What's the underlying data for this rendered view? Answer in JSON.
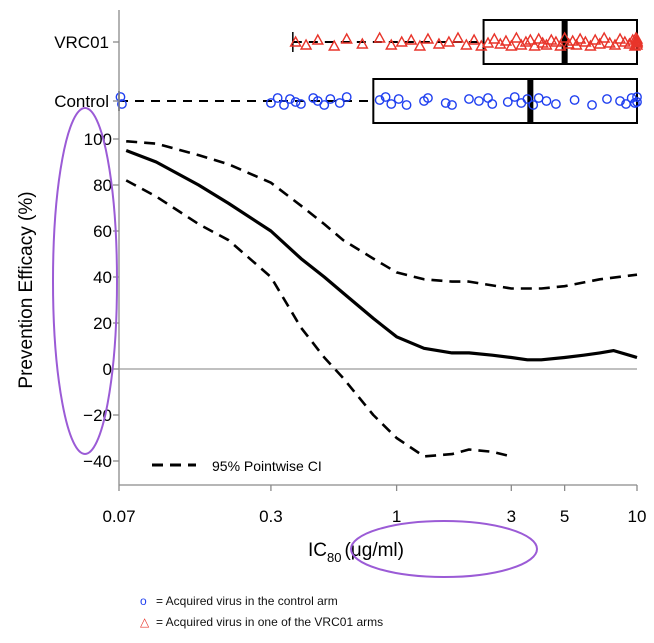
{
  "chart_data": {
    "type": "line",
    "ylabel": "Prevention Efficacy (%)",
    "xlabel_main": "IC",
    "xlabel_sub": "80",
    "xlabel_unit": "(μg/ml)",
    "x_scale": "log",
    "xlim": [
      0.07,
      10
    ],
    "ylim": [
      -40,
      100
    ],
    "x_ticks": [
      0.07,
      0.3,
      1,
      3,
      5,
      10
    ],
    "x_tick_labels": [
      "0.07",
      "0.3",
      "1",
      "3",
      "5",
      "10"
    ],
    "y_ticks": [
      -40,
      -20,
      0,
      20,
      40,
      60,
      80,
      100
    ],
    "y_tick_labels": [
      "−40",
      "−20",
      "0",
      "20",
      "40",
      "60",
      "80",
      "100"
    ],
    "reference_line_y": 0,
    "legend_entry": "95% Pointwise CI",
    "series": [
      {
        "style": "solid",
        "x": [
          0.075,
          0.1,
          0.15,
          0.2,
          0.3,
          0.4,
          0.5,
          0.6,
          0.8,
          1.0,
          1.3,
          1.7,
          2.0,
          2.5,
          3.0,
          3.5,
          4.0,
          5.0,
          6.0,
          7.0,
          8.0,
          10.0
        ],
        "y": [
          95,
          90,
          80,
          72,
          60,
          48,
          40,
          33,
          22,
          14,
          9,
          7,
          7,
          6,
          5,
          4,
          4,
          5,
          6,
          7,
          8,
          5
        ]
      },
      {
        "style": "dashed",
        "x": [
          0.075,
          0.1,
          0.15,
          0.2,
          0.3,
          0.4,
          0.5,
          0.6,
          0.8,
          1.0,
          1.3,
          1.7,
          2.0,
          3.0,
          4.0,
          5.0,
          7.0,
          10.0
        ],
        "y": [
          99,
          98,
          93,
          89,
          81,
          71,
          63,
          56,
          48,
          42,
          39,
          38,
          38,
          35,
          35,
          36,
          39,
          41
        ]
      },
      {
        "style": "dashed",
        "x": [
          0.075,
          0.1,
          0.15,
          0.2,
          0.3,
          0.4,
          0.5,
          0.6,
          0.8,
          1.0,
          1.3,
          1.7,
          2.0,
          2.5,
          3.0
        ],
        "y": [
          82,
          75,
          63,
          56,
          40,
          18,
          5,
          -4,
          -20,
          -30,
          -38,
          -37,
          -35,
          -36,
          -38
        ]
      }
    ],
    "strips": [
      {
        "label": "VRC01",
        "marker": "triangle",
        "color": "#e8342a",
        "whisker": [
          0.37,
          10
        ],
        "box": {
          "q1": 2.3,
          "median": 5.0,
          "q3": 10
        },
        "points": [
          0.38,
          0.42,
          0.47,
          0.55,
          0.62,
          0.72,
          0.85,
          0.95,
          1.05,
          1.15,
          1.25,
          1.35,
          1.5,
          1.65,
          1.8,
          1.95,
          2.1,
          2.25,
          2.4,
          2.55,
          2.7,
          2.85,
          3.0,
          3.15,
          3.3,
          3.45,
          3.6,
          3.75,
          3.9,
          4.05,
          4.2,
          4.4,
          4.6,
          4.8,
          5.0,
          5.2,
          5.4,
          5.6,
          5.8,
          6.1,
          6.4,
          6.7,
          7.0,
          7.3,
          7.7,
          8.1,
          8.5,
          8.9,
          9.3,
          9.6,
          9.8,
          9.9,
          10.0,
          10.0,
          10.0,
          10.0,
          10.0
        ],
        "jitter": [
          0,
          3,
          -2,
          4,
          -3,
          2,
          -4,
          3,
          0,
          -2,
          4,
          -3,
          2,
          0,
          -4,
          3,
          -2,
          4,
          1,
          -3,
          2,
          -1,
          4,
          -4,
          3,
          0,
          -2,
          4,
          -3,
          1,
          3,
          -2,
          0,
          4,
          -4,
          2,
          -1,
          3,
          -3,
          0,
          4,
          -2,
          2,
          -4,
          1,
          3,
          -3,
          0,
          2,
          -2,
          4,
          -4,
          0,
          3,
          -3,
          1,
          -1
        ]
      },
      {
        "label": "Control",
        "marker": "circle",
        "color": "#1f3ff0",
        "whisker": [
          0.07,
          10
        ],
        "box": {
          "q1": 0.8,
          "median": 3.6,
          "q3": 10
        },
        "points": [
          0.071,
          0.072,
          0.3,
          0.32,
          0.34,
          0.36,
          0.38,
          0.4,
          0.45,
          0.47,
          0.5,
          0.53,
          0.58,
          0.62,
          0.85,
          0.9,
          0.95,
          1.02,
          1.1,
          1.3,
          1.35,
          1.6,
          1.7,
          2.0,
          2.2,
          2.4,
          2.5,
          2.9,
          3.1,
          3.3,
          3.5,
          3.7,
          3.9,
          4.2,
          4.6,
          5.5,
          6.5,
          7.5,
          8.5,
          9.0,
          9.5,
          9.8,
          10.0,
          10.0
        ],
        "jitter": [
          -4,
          3,
          2,
          -3,
          4,
          -2,
          1,
          3,
          -3,
          0,
          4,
          -2,
          2,
          -4,
          -1,
          -4,
          3,
          -2,
          4,
          0,
          -3,
          2,
          4,
          -2,
          0,
          -3,
          3,
          1,
          -4,
          2,
          -2,
          4,
          -3,
          0,
          3,
          -1,
          4,
          -2,
          0,
          3,
          -3,
          2,
          -4,
          1
        ]
      }
    ],
    "marker_legend": [
      {
        "symbol": "o",
        "color": "#1f3ff0",
        "text": "= Acquired virus in the control arm"
      },
      {
        "symbol": "△",
        "color": "#e8342a",
        "text": "= Acquired virus in one of the VRC01 arms"
      }
    ],
    "annotations": {
      "ellipse_color": "#9b5bd6"
    }
  }
}
